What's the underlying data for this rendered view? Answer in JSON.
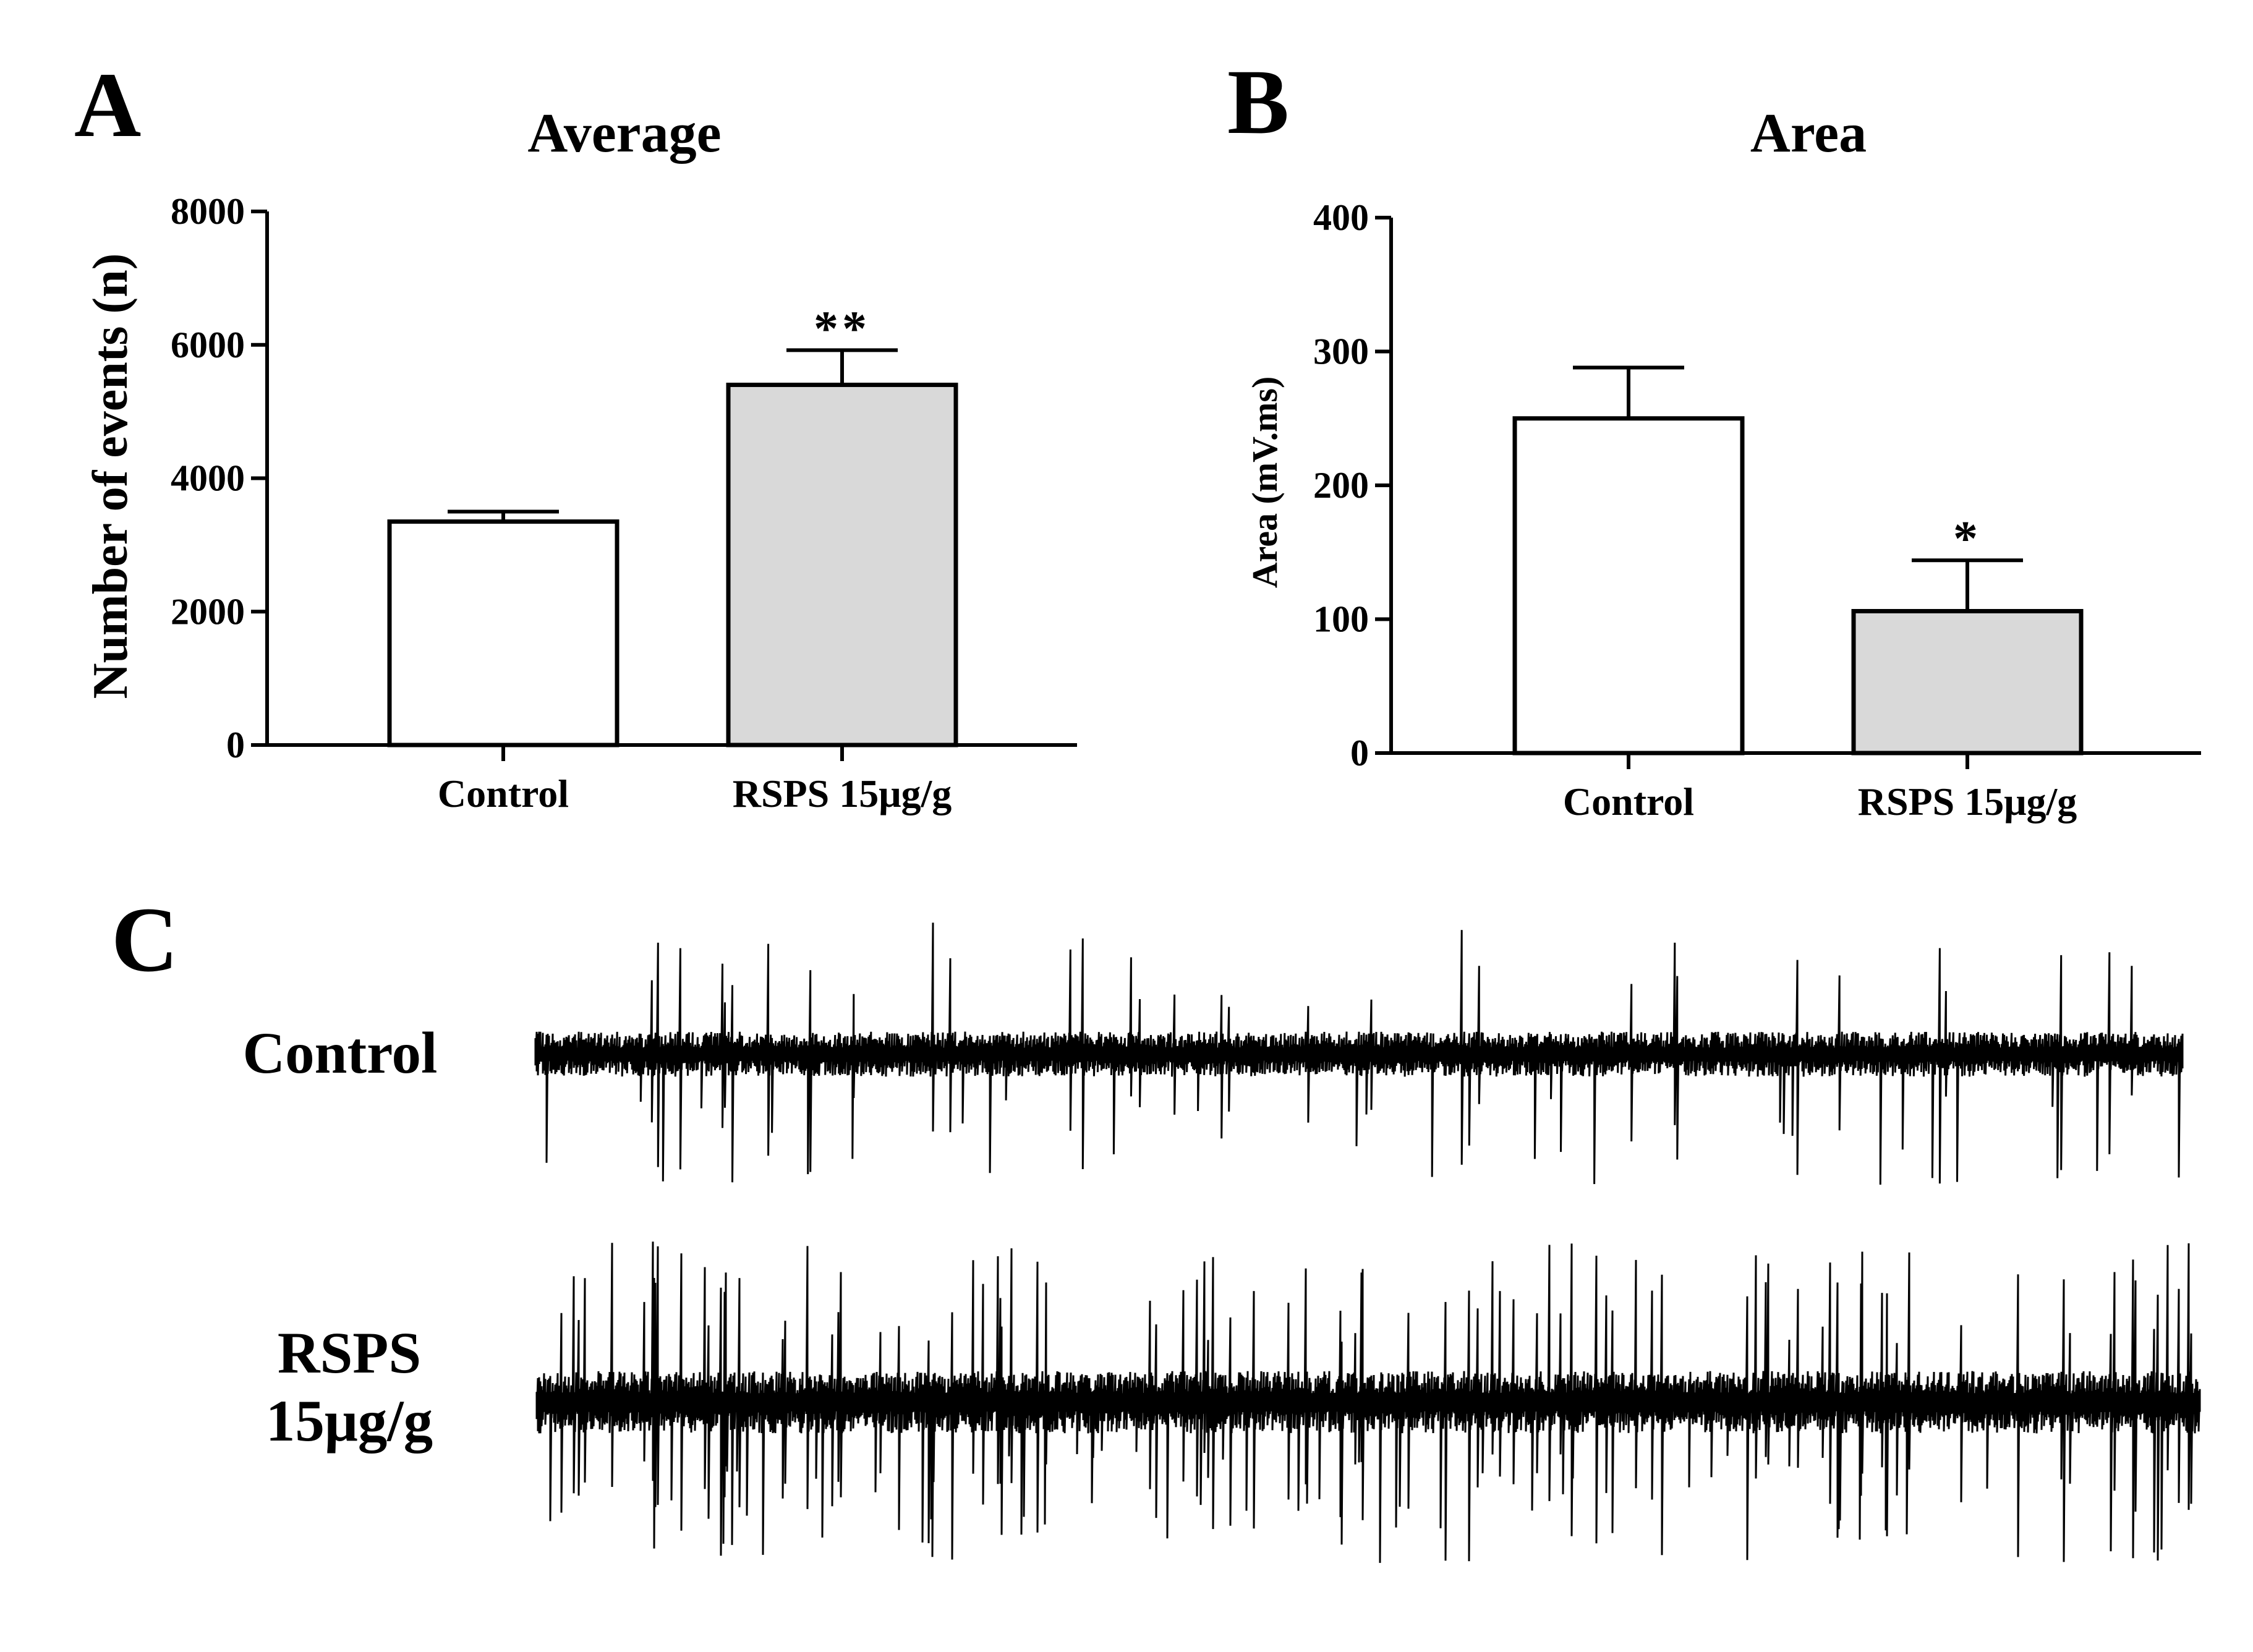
{
  "chart_data": [
    {
      "panel": "A",
      "type": "bar",
      "title": "Average",
      "xlabel": "",
      "ylabel": "Number of events (n)",
      "ylim": [
        0,
        8000
      ],
      "yticks": [
        0,
        2000,
        4000,
        6000,
        8000
      ],
      "categories": [
        "Control",
        "RSPS 15μg/g"
      ],
      "values": [
        3350,
        5400
      ],
      "errors": [
        150,
        520
      ],
      "fills": [
        "#ffffff",
        "#d9d9d9"
      ],
      "significance": [
        "",
        "**"
      ]
    },
    {
      "panel": "B",
      "type": "bar",
      "title": "Area",
      "xlabel": "",
      "ylabel": "Area (mV.ms)",
      "ylim": [
        0,
        400
      ],
      "yticks": [
        0,
        100,
        200,
        300,
        400
      ],
      "categories": [
        "Control",
        "RSPS 15μg/g"
      ],
      "values": [
        250,
        106
      ],
      "errors": [
        38,
        38
      ],
      "fills": [
        "#ffffff",
        "#d9d9d9"
      ],
      "significance": [
        "",
        "*"
      ]
    }
  ],
  "traces": {
    "panel": "C",
    "rows": [
      {
        "label_lines": [
          "Control"
        ],
        "condition": "Control"
      },
      {
        "label_lines": [
          "RSPS",
          "15μg/g"
        ],
        "condition": "RSPS 15μg/g"
      }
    ]
  },
  "colors": {
    "ink": "#000000",
    "treated_fill": "#d9d9d9",
    "control_fill": "#ffffff"
  }
}
